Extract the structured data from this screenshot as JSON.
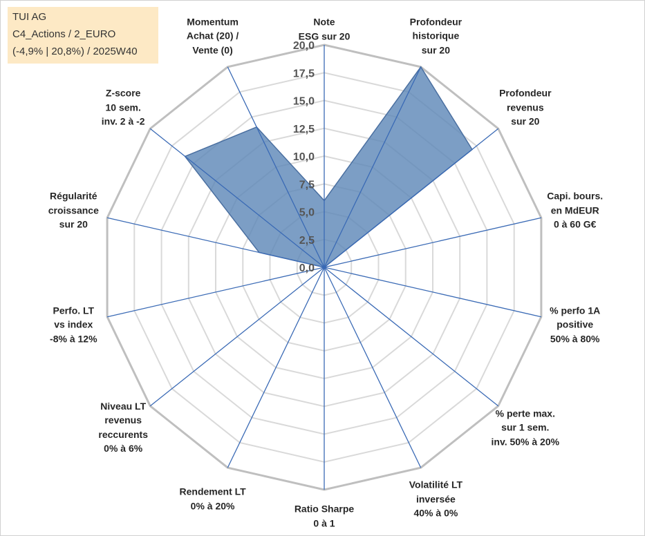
{
  "info_box": {
    "company": "TUI AG",
    "category": "C4_Actions / 2_EURO",
    "performance": "(-4,9% | 20,8%) / 2025W40"
  },
  "chart_data": {
    "type": "radar",
    "title": "",
    "rmin": 0,
    "rmax": 20,
    "ticks": [
      "0,0",
      "2,5",
      "5,0",
      "7,5",
      "10,0",
      "12,5",
      "15,0",
      "17,5",
      "20,0"
    ],
    "tick_values": [
      0,
      2.5,
      5,
      7.5,
      10,
      12.5,
      15,
      17.5,
      20
    ],
    "grid": true,
    "axes": [
      {
        "lines": [
          "Note",
          "ESG sur 20"
        ]
      },
      {
        "lines": [
          "Profondeur",
          "historique",
          "sur 20"
        ]
      },
      {
        "lines": [
          "Profondeur",
          "revenus",
          "sur 20"
        ]
      },
      {
        "lines": [
          "Capi. bours.",
          "en MdEUR",
          "0 à 60 G€"
        ]
      },
      {
        "lines": [
          "% perfo 1A",
          "positive",
          "50% à 80%"
        ]
      },
      {
        "lines": [
          "% perte max.",
          "sur 1 sem.",
          "inv. 50% à 20%"
        ]
      },
      {
        "lines": [
          "Volatilité LT",
          "inversée",
          "40% à 0%"
        ]
      },
      {
        "lines": [
          "Ratio Sharpe",
          "0 à 1"
        ]
      },
      {
        "lines": [
          "Rendement LT",
          "0% à 20%"
        ]
      },
      {
        "lines": [
          "Niveau LT",
          "revenus",
          "reccurents",
          "0% à 6%"
        ]
      },
      {
        "lines": [
          "Perfo. LT",
          "vs index",
          "-8% à 12%"
        ]
      },
      {
        "lines": [
          "Régularité",
          "croissance",
          "sur 20"
        ]
      },
      {
        "lines": [
          "Z-score",
          "10 sem.",
          "inv. 2 à -2"
        ]
      },
      {
        "lines": [
          "Momentum",
          "Achat (20) /",
          "Vente (0)"
        ]
      }
    ],
    "series": [
      {
        "values": [
          6,
          20,
          17,
          0,
          0,
          0,
          0,
          0,
          0,
          0,
          0,
          6,
          16,
          14
        ]
      }
    ],
    "colors": {
      "fill": "#5b86b6",
      "fill_opacity": 0.8,
      "series_line": "#4a6fa0",
      "spokes": "#3a6ab5",
      "grid_outer": "#bfbfbf",
      "grid_inner": "#d9d9d9"
    }
  }
}
